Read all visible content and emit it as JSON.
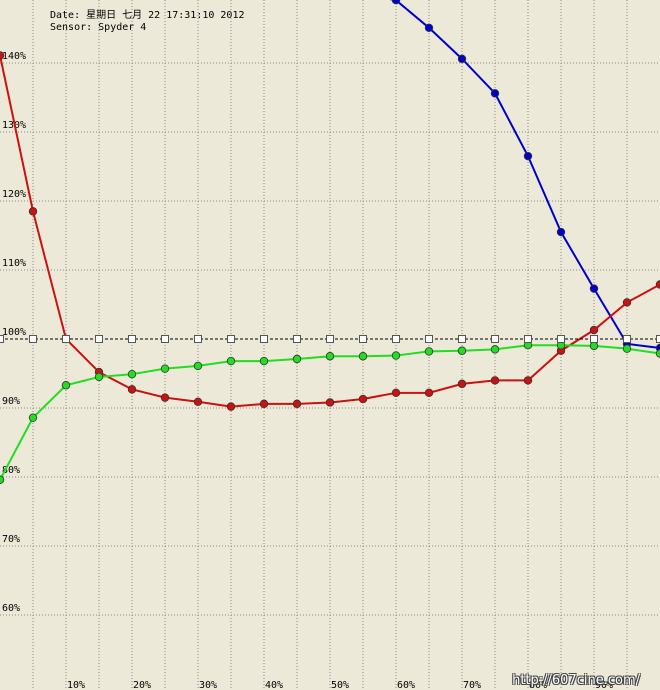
{
  "header": {
    "date_line": "Date: 星期日 七月 22 17:31:10 2012",
    "sensor_line": "Sensor: Spyder 4"
  },
  "watermark": "http://607cine.com/",
  "chart_data": {
    "type": "line",
    "title": "",
    "xlabel": "",
    "ylabel": "",
    "xlim": [
      0,
      100
    ],
    "ylim": [
      50,
      150
    ],
    "grid": true,
    "x": [
      0,
      5,
      10,
      15,
      20,
      25,
      30,
      35,
      40,
      45,
      50,
      55,
      60,
      65,
      70,
      75,
      80,
      85,
      90,
      95,
      100
    ],
    "x_ticks": [
      {
        "value": 10,
        "label": "10%"
      },
      {
        "value": 20,
        "label": "20%"
      },
      {
        "value": 30,
        "label": "30%"
      },
      {
        "value": 40,
        "label": "40%"
      },
      {
        "value": 50,
        "label": "50%"
      },
      {
        "value": 60,
        "label": "60%"
      },
      {
        "value": 70,
        "label": "70%"
      },
      {
        "value": 80,
        "label": "80%"
      },
      {
        "value": 90,
        "label": "90%"
      }
    ],
    "y_ticks": [
      {
        "value": 60,
        "label": "60%"
      },
      {
        "value": 70,
        "label": "70%"
      },
      {
        "value": 80,
        "label": "80%"
      },
      {
        "value": 90,
        "label": "90%"
      },
      {
        "value": 100,
        "label": "100%"
      },
      {
        "value": 110,
        "label": "110%"
      },
      {
        "value": 120,
        "label": "120%"
      },
      {
        "value": 130,
        "label": "130%"
      },
      {
        "value": 140,
        "label": "140%"
      }
    ],
    "series": [
      {
        "color": "#0000cc",
        "marker": "circle",
        "values": [
          150,
          150,
          150,
          150,
          150,
          150,
          150,
          150,
          150,
          150,
          150,
          150,
          149.1,
          145.1,
          140.6,
          135.6,
          126.5,
          115.5,
          107.3,
          99.3,
          98.7
        ]
      },
      {
        "color": "#cc1111",
        "marker": "circle",
        "values": [
          141.1,
          118.5,
          100,
          95.2,
          92.7,
          91.5,
          90.9,
          90.2,
          90.6,
          90.6,
          90.8,
          91.3,
          92.2,
          92.2,
          93.5,
          94.0,
          94.0,
          98.3,
          101.3,
          105.3,
          107.9
        ]
      },
      {
        "color": "#22dd22",
        "marker": "circle",
        "values": [
          79.6,
          88.6,
          93.3,
          94.5,
          94.9,
          95.7,
          96.1,
          96.8,
          96.8,
          97.1,
          97.5,
          97.5,
          97.6,
          98.2,
          98.3,
          98.5,
          99.1,
          99.1,
          99.0,
          98.6,
          97.9
        ]
      },
      {
        "color": "#000000",
        "marker": "square",
        "dashed": true,
        "values": [
          100,
          100,
          100,
          100,
          100,
          100,
          100,
          100,
          100,
          100,
          100,
          100,
          100,
          100,
          100,
          100,
          100,
          100,
          100,
          100,
          100
        ]
      }
    ]
  }
}
